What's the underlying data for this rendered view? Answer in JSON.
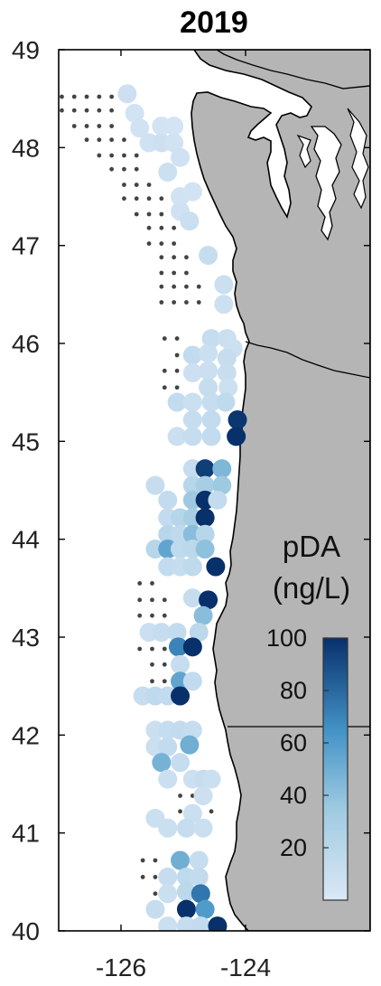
{
  "title": "2019",
  "map": {
    "lon_range": [
      -127,
      -122
    ],
    "lat_range": [
      40,
      49
    ],
    "x_ticks": [
      -126,
      -124
    ],
    "y_ticks": [
      40,
      41,
      42,
      43,
      44,
      45,
      46,
      47,
      48,
      49
    ],
    "x_tick_labels": [
      "-126",
      "-124"
    ],
    "y_tick_labels": [
      "40",
      "41",
      "42",
      "43",
      "44",
      "45",
      "46",
      "47",
      "48",
      "49"
    ],
    "colors": {
      "land": "#b5b5b5",
      "water": "#ffffff",
      "coast": "#000000",
      "sample_dot": "#444444"
    }
  },
  "colorbar": {
    "title_line1": "pDA",
    "title_line2": "(ng/L)",
    "min": 0,
    "max": 100,
    "ticks": [
      "20",
      "40",
      "60",
      "80",
      "100"
    ],
    "color_low": "#dbe7f6",
    "color_high": "#08306b"
  },
  "stations": [
    {
      "lon": -125.9,
      "lat": 48.55,
      "v": 8
    },
    {
      "lon": -125.78,
      "lat": 48.35,
      "v": 5
    },
    {
      "lon": -125.7,
      "lat": 48.2,
      "v": 6
    },
    {
      "lon": -125.55,
      "lat": 48.05,
      "v": 7
    },
    {
      "lon": -125.35,
      "lat": 48.05,
      "v": 8
    },
    {
      "lon": -125.15,
      "lat": 48.05,
      "v": 6
    },
    {
      "lon": -125.35,
      "lat": 48.22,
      "v": 5
    },
    {
      "lon": -125.15,
      "lat": 48.22,
      "v": 4
    },
    {
      "lon": -125.05,
      "lat": 47.9,
      "v": 7
    },
    {
      "lon": -125.25,
      "lat": 47.75,
      "v": 9
    },
    {
      "lon": -125.05,
      "lat": 47.5,
      "v": 6
    },
    {
      "lon": -124.85,
      "lat": 47.55,
      "v": 5
    },
    {
      "lon": -125.05,
      "lat": 47.35,
      "v": 7
    },
    {
      "lon": -124.9,
      "lat": 47.25,
      "v": 10
    },
    {
      "lon": -124.6,
      "lat": 46.9,
      "v": 12
    },
    {
      "lon": -124.35,
      "lat": 46.6,
      "v": 10
    },
    {
      "lon": -124.35,
      "lat": 46.4,
      "v": 8
    },
    {
      "lon": -124.55,
      "lat": 46.05,
      "v": 12
    },
    {
      "lon": -124.3,
      "lat": 46.05,
      "v": 10
    },
    {
      "lon": -124.2,
      "lat": 45.95,
      "v": 8
    },
    {
      "lon": -124.85,
      "lat": 45.88,
      "v": 14
    },
    {
      "lon": -124.6,
      "lat": 45.9,
      "v": 10
    },
    {
      "lon": -124.3,
      "lat": 45.85,
      "v": 12
    },
    {
      "lon": -124.85,
      "lat": 45.7,
      "v": 8
    },
    {
      "lon": -124.6,
      "lat": 45.72,
      "v": 10
    },
    {
      "lon": -124.3,
      "lat": 45.7,
      "v": 11
    },
    {
      "lon": -124.6,
      "lat": 45.55,
      "v": 12
    },
    {
      "lon": -124.28,
      "lat": 45.55,
      "v": 9
    },
    {
      "lon": -125.1,
      "lat": 45.4,
      "v": 14
    },
    {
      "lon": -124.85,
      "lat": 45.4,
      "v": 10
    },
    {
      "lon": -124.55,
      "lat": 45.4,
      "v": 12
    },
    {
      "lon": -124.32,
      "lat": 45.4,
      "v": 16
    },
    {
      "lon": -124.85,
      "lat": 45.22,
      "v": 12
    },
    {
      "lon": -124.55,
      "lat": 45.22,
      "v": 14
    },
    {
      "lon": -124.13,
      "lat": 45.22,
      "v": 98
    },
    {
      "lon": -125.1,
      "lat": 45.05,
      "v": 10
    },
    {
      "lon": -124.85,
      "lat": 45.05,
      "v": 12
    },
    {
      "lon": -124.55,
      "lat": 45.05,
      "v": 14
    },
    {
      "lon": -124.15,
      "lat": 45.05,
      "v": 100
    },
    {
      "lon": -124.85,
      "lat": 44.72,
      "v": 12
    },
    {
      "lon": -124.65,
      "lat": 44.72,
      "v": 95
    },
    {
      "lon": -124.38,
      "lat": 44.72,
      "v": 45
    },
    {
      "lon": -125.45,
      "lat": 44.55,
      "v": 12
    },
    {
      "lon": -124.85,
      "lat": 44.55,
      "v": 20
    },
    {
      "lon": -124.65,
      "lat": 44.55,
      "v": 30
    },
    {
      "lon": -124.38,
      "lat": 44.55,
      "v": 35
    },
    {
      "lon": -125.25,
      "lat": 44.4,
      "v": 14
    },
    {
      "lon": -124.85,
      "lat": 44.4,
      "v": 35
    },
    {
      "lon": -124.65,
      "lat": 44.4,
      "v": 100
    },
    {
      "lon": -124.45,
      "lat": 44.4,
      "v": 14
    },
    {
      "lon": -125.25,
      "lat": 44.22,
      "v": 14
    },
    {
      "lon": -125.05,
      "lat": 44.22,
      "v": 22
    },
    {
      "lon": -124.85,
      "lat": 44.22,
      "v": 30
    },
    {
      "lon": -124.65,
      "lat": 44.22,
      "v": 100
    },
    {
      "lon": -125.25,
      "lat": 44.05,
      "v": 20
    },
    {
      "lon": -125.05,
      "lat": 44.05,
      "v": 16
    },
    {
      "lon": -124.85,
      "lat": 44.05,
      "v": 42
    },
    {
      "lon": -124.65,
      "lat": 44.05,
      "v": 20
    },
    {
      "lon": -125.45,
      "lat": 43.9,
      "v": 20
    },
    {
      "lon": -125.25,
      "lat": 43.9,
      "v": 55
    },
    {
      "lon": -125.05,
      "lat": 43.9,
      "v": 16
    },
    {
      "lon": -124.85,
      "lat": 43.9,
      "v": 18
    },
    {
      "lon": -124.65,
      "lat": 43.9,
      "v": 40
    },
    {
      "lon": -125.25,
      "lat": 43.72,
      "v": 14
    },
    {
      "lon": -125.05,
      "lat": 43.72,
      "v": 12
    },
    {
      "lon": -124.85,
      "lat": 43.72,
      "v": 16
    },
    {
      "lon": -124.48,
      "lat": 43.72,
      "v": 100
    },
    {
      "lon": -124.85,
      "lat": 43.4,
      "v": 12
    },
    {
      "lon": -124.6,
      "lat": 43.38,
      "v": 100
    },
    {
      "lon": -124.68,
      "lat": 43.22,
      "v": 42
    },
    {
      "lon": -125.55,
      "lat": 43.05,
      "v": 10
    },
    {
      "lon": -125.35,
      "lat": 43.05,
      "v": 12
    },
    {
      "lon": -125.1,
      "lat": 43.05,
      "v": 14
    },
    {
      "lon": -124.75,
      "lat": 43.05,
      "v": 18
    },
    {
      "lon": -125.08,
      "lat": 42.9,
      "v": 70
    },
    {
      "lon": -124.85,
      "lat": 42.9,
      "v": 100
    },
    {
      "lon": -125.05,
      "lat": 42.72,
      "v": 12
    },
    {
      "lon": -125.05,
      "lat": 42.55,
      "v": 55
    },
    {
      "lon": -124.85,
      "lat": 42.55,
      "v": 14
    },
    {
      "lon": -125.65,
      "lat": 42.4,
      "v": 12
    },
    {
      "lon": -125.45,
      "lat": 42.4,
      "v": 16
    },
    {
      "lon": -125.25,
      "lat": 42.4,
      "v": 14
    },
    {
      "lon": -125.05,
      "lat": 42.4,
      "v": 100
    },
    {
      "lon": -125.45,
      "lat": 42.05,
      "v": 10
    },
    {
      "lon": -125.25,
      "lat": 42.05,
      "v": 12
    },
    {
      "lon": -125.05,
      "lat": 42.05,
      "v": 14
    },
    {
      "lon": -124.85,
      "lat": 42.05,
      "v": 12
    },
    {
      "lon": -125.45,
      "lat": 41.88,
      "v": 10
    },
    {
      "lon": -125.25,
      "lat": 41.88,
      "v": 14
    },
    {
      "lon": -124.9,
      "lat": 41.9,
      "v": 50
    },
    {
      "lon": -125.35,
      "lat": 41.72,
      "v": 48
    },
    {
      "lon": -125.05,
      "lat": 41.72,
      "v": 12
    },
    {
      "lon": -125.25,
      "lat": 41.55,
      "v": 10
    },
    {
      "lon": -124.85,
      "lat": 41.55,
      "v": 8
    },
    {
      "lon": -124.68,
      "lat": 41.55,
      "v": 12
    },
    {
      "lon": -124.55,
      "lat": 41.55,
      "v": 10
    },
    {
      "lon": -124.68,
      "lat": 41.38,
      "v": 8
    },
    {
      "lon": -124.85,
      "lat": 41.2,
      "v": 10
    },
    {
      "lon": -125.45,
      "lat": 41.15,
      "v": 10
    },
    {
      "lon": -125.25,
      "lat": 41.05,
      "v": 10
    },
    {
      "lon": -124.95,
      "lat": 41.05,
      "v": 12
    },
    {
      "lon": -124.68,
      "lat": 41.05,
      "v": 10
    },
    {
      "lon": -125.05,
      "lat": 40.72,
      "v": 50
    },
    {
      "lon": -124.75,
      "lat": 40.72,
      "v": 12
    },
    {
      "lon": -125.25,
      "lat": 40.55,
      "v": 12
    },
    {
      "lon": -124.95,
      "lat": 40.55,
      "v": 16
    },
    {
      "lon": -124.75,
      "lat": 40.55,
      "v": 14
    },
    {
      "lon": -125.25,
      "lat": 40.38,
      "v": 10
    },
    {
      "lon": -124.95,
      "lat": 40.4,
      "v": 18
    },
    {
      "lon": -124.72,
      "lat": 40.38,
      "v": 75
    },
    {
      "lon": -125.45,
      "lat": 40.22,
      "v": 12
    },
    {
      "lon": -124.95,
      "lat": 40.22,
      "v": 100
    },
    {
      "lon": -124.65,
      "lat": 40.22,
      "v": 60
    },
    {
      "lon": -125.25,
      "lat": 40.05,
      "v": 10
    },
    {
      "lon": -124.95,
      "lat": 40.05,
      "v": 12
    },
    {
      "lon": -124.72,
      "lat": 40.05,
      "v": 14
    },
    {
      "lon": -124.45,
      "lat": 40.05,
      "v": 100
    }
  ],
  "sample_dots": [
    {
      "lon": -126.95,
      "lat": 48.52
    },
    {
      "lon": -126.75,
      "lat": 48.52
    },
    {
      "lon": -126.55,
      "lat": 48.52
    },
    {
      "lon": -126.35,
      "lat": 48.52
    },
    {
      "lon": -126.15,
      "lat": 48.52
    },
    {
      "lon": -126.95,
      "lat": 48.38
    },
    {
      "lon": -126.75,
      "lat": 48.38
    },
    {
      "lon": -126.55,
      "lat": 48.38
    },
    {
      "lon": -126.35,
      "lat": 48.38
    },
    {
      "lon": -126.15,
      "lat": 48.38
    },
    {
      "lon": -126.75,
      "lat": 48.22
    },
    {
      "lon": -126.55,
      "lat": 48.22
    },
    {
      "lon": -126.35,
      "lat": 48.22
    },
    {
      "lon": -126.15,
      "lat": 48.22
    },
    {
      "lon": -126.55,
      "lat": 48.08
    },
    {
      "lon": -126.35,
      "lat": 48.08
    },
    {
      "lon": -126.15,
      "lat": 48.08
    },
    {
      "lon": -125.95,
      "lat": 48.08
    },
    {
      "lon": -126.35,
      "lat": 47.92
    },
    {
      "lon": -126.15,
      "lat": 47.92
    },
    {
      "lon": -125.95,
      "lat": 47.92
    },
    {
      "lon": -125.75,
      "lat": 47.92
    },
    {
      "lon": -126.15,
      "lat": 47.78
    },
    {
      "lon": -125.95,
      "lat": 47.78
    },
    {
      "lon": -125.75,
      "lat": 47.78
    },
    {
      "lon": -125.95,
      "lat": 47.62
    },
    {
      "lon": -125.75,
      "lat": 47.62
    },
    {
      "lon": -125.55,
      "lat": 47.62
    },
    {
      "lon": -125.95,
      "lat": 47.48
    },
    {
      "lon": -125.75,
      "lat": 47.48
    },
    {
      "lon": -125.55,
      "lat": 47.48
    },
    {
      "lon": -125.35,
      "lat": 47.48
    },
    {
      "lon": -125.75,
      "lat": 47.32
    },
    {
      "lon": -125.55,
      "lat": 47.32
    },
    {
      "lon": -125.35,
      "lat": 47.32
    },
    {
      "lon": -125.55,
      "lat": 47.18
    },
    {
      "lon": -125.35,
      "lat": 47.18
    },
    {
      "lon": -125.15,
      "lat": 47.18
    },
    {
      "lon": -125.55,
      "lat": 47.02
    },
    {
      "lon": -125.35,
      "lat": 47.02
    },
    {
      "lon": -125.15,
      "lat": 47.02
    },
    {
      "lon": -125.35,
      "lat": 46.88
    },
    {
      "lon": -125.15,
      "lat": 46.88
    },
    {
      "lon": -124.95,
      "lat": 46.88
    },
    {
      "lon": -125.35,
      "lat": 46.72
    },
    {
      "lon": -125.15,
      "lat": 46.72
    },
    {
      "lon": -124.95,
      "lat": 46.72
    },
    {
      "lon": -125.35,
      "lat": 46.58
    },
    {
      "lon": -125.15,
      "lat": 46.58
    },
    {
      "lon": -124.95,
      "lat": 46.58
    },
    {
      "lon": -124.75,
      "lat": 46.58
    },
    {
      "lon": -125.35,
      "lat": 46.42
    },
    {
      "lon": -125.15,
      "lat": 46.42
    },
    {
      "lon": -124.95,
      "lat": 46.42
    },
    {
      "lon": -124.75,
      "lat": 46.42
    },
    {
      "lon": -125.3,
      "lat": 46.05
    },
    {
      "lon": -125.1,
      "lat": 46.05
    },
    {
      "lon": -125.1,
      "lat": 45.88
    },
    {
      "lon": -125.3,
      "lat": 45.72
    },
    {
      "lon": -125.1,
      "lat": 45.72
    },
    {
      "lon": -125.3,
      "lat": 45.55
    },
    {
      "lon": -125.1,
      "lat": 45.55
    },
    {
      "lon": -125.7,
      "lat": 43.55
    },
    {
      "lon": -125.5,
      "lat": 43.55
    },
    {
      "lon": -125.7,
      "lat": 43.38
    },
    {
      "lon": -125.5,
      "lat": 43.38
    },
    {
      "lon": -125.3,
      "lat": 43.38
    },
    {
      "lon": -125.7,
      "lat": 43.22
    },
    {
      "lon": -125.5,
      "lat": 43.22
    },
    {
      "lon": -125.3,
      "lat": 43.22
    },
    {
      "lon": -125.7,
      "lat": 42.88
    },
    {
      "lon": -125.5,
      "lat": 42.88
    },
    {
      "lon": -125.3,
      "lat": 42.88
    },
    {
      "lon": -125.5,
      "lat": 42.72
    },
    {
      "lon": -125.3,
      "lat": 42.72
    },
    {
      "lon": -125.5,
      "lat": 42.55
    },
    {
      "lon": -125.3,
      "lat": 42.55
    },
    {
      "lon": -125.05,
      "lat": 41.38
    },
    {
      "lon": -124.85,
      "lat": 41.38
    },
    {
      "lon": -125.05,
      "lat": 41.22
    },
    {
      "lon": -124.55,
      "lat": 41.22
    },
    {
      "lon": -125.65,
      "lat": 40.72
    },
    {
      "lon": -125.45,
      "lat": 40.72
    },
    {
      "lon": -125.65,
      "lat": 40.55
    },
    {
      "lon": -125.45,
      "lat": 40.55
    },
    {
      "lon": -125.45,
      "lat": 40.38
    }
  ]
}
